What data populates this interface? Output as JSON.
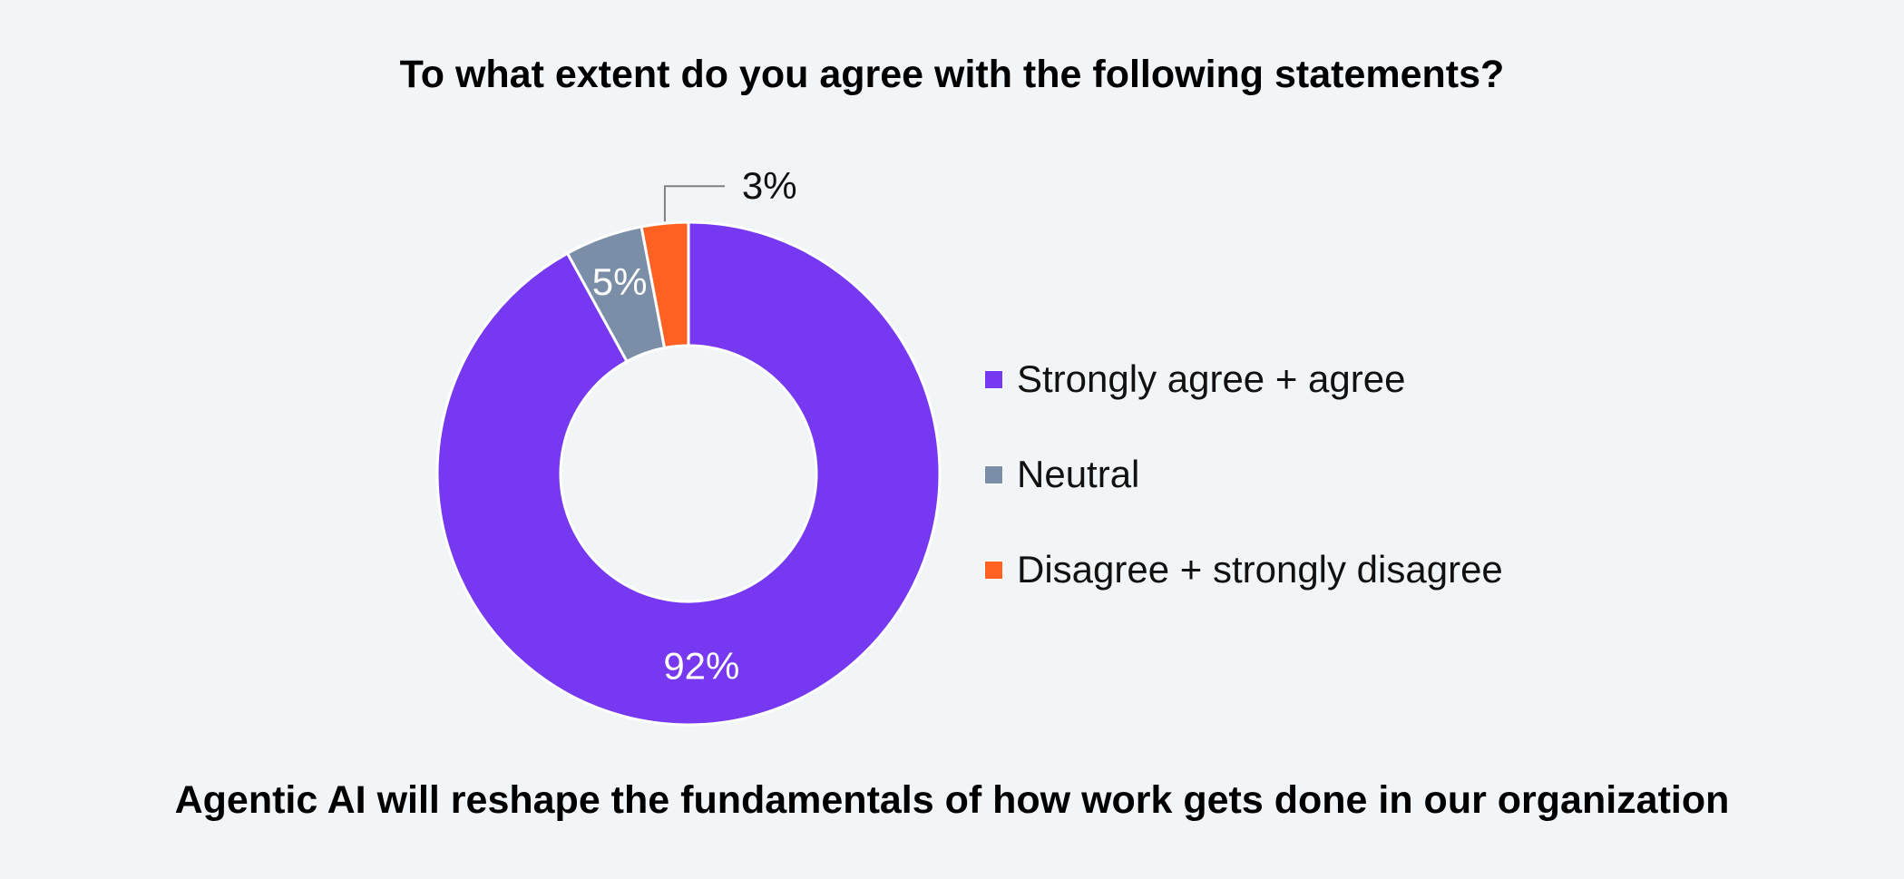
{
  "title": "To what extent do you agree with the following statements?",
  "subtitle": "Agentic AI will reshape the fundamentals of how work gets done in our organization",
  "chart_data": {
    "type": "pie",
    "donut": true,
    "categories": [
      "Strongly agree + agree",
      "Neutral",
      "Disagree + strongly disagree"
    ],
    "values": [
      92,
      5,
      3
    ],
    "data_labels": [
      "92%",
      "5%",
      "3%"
    ],
    "colors": [
      "#7738f2",
      "#7b8ea8",
      "#ff6122"
    ],
    "legend_position": "right",
    "start_angle": "12 o'clock",
    "direction": "clockwise"
  }
}
